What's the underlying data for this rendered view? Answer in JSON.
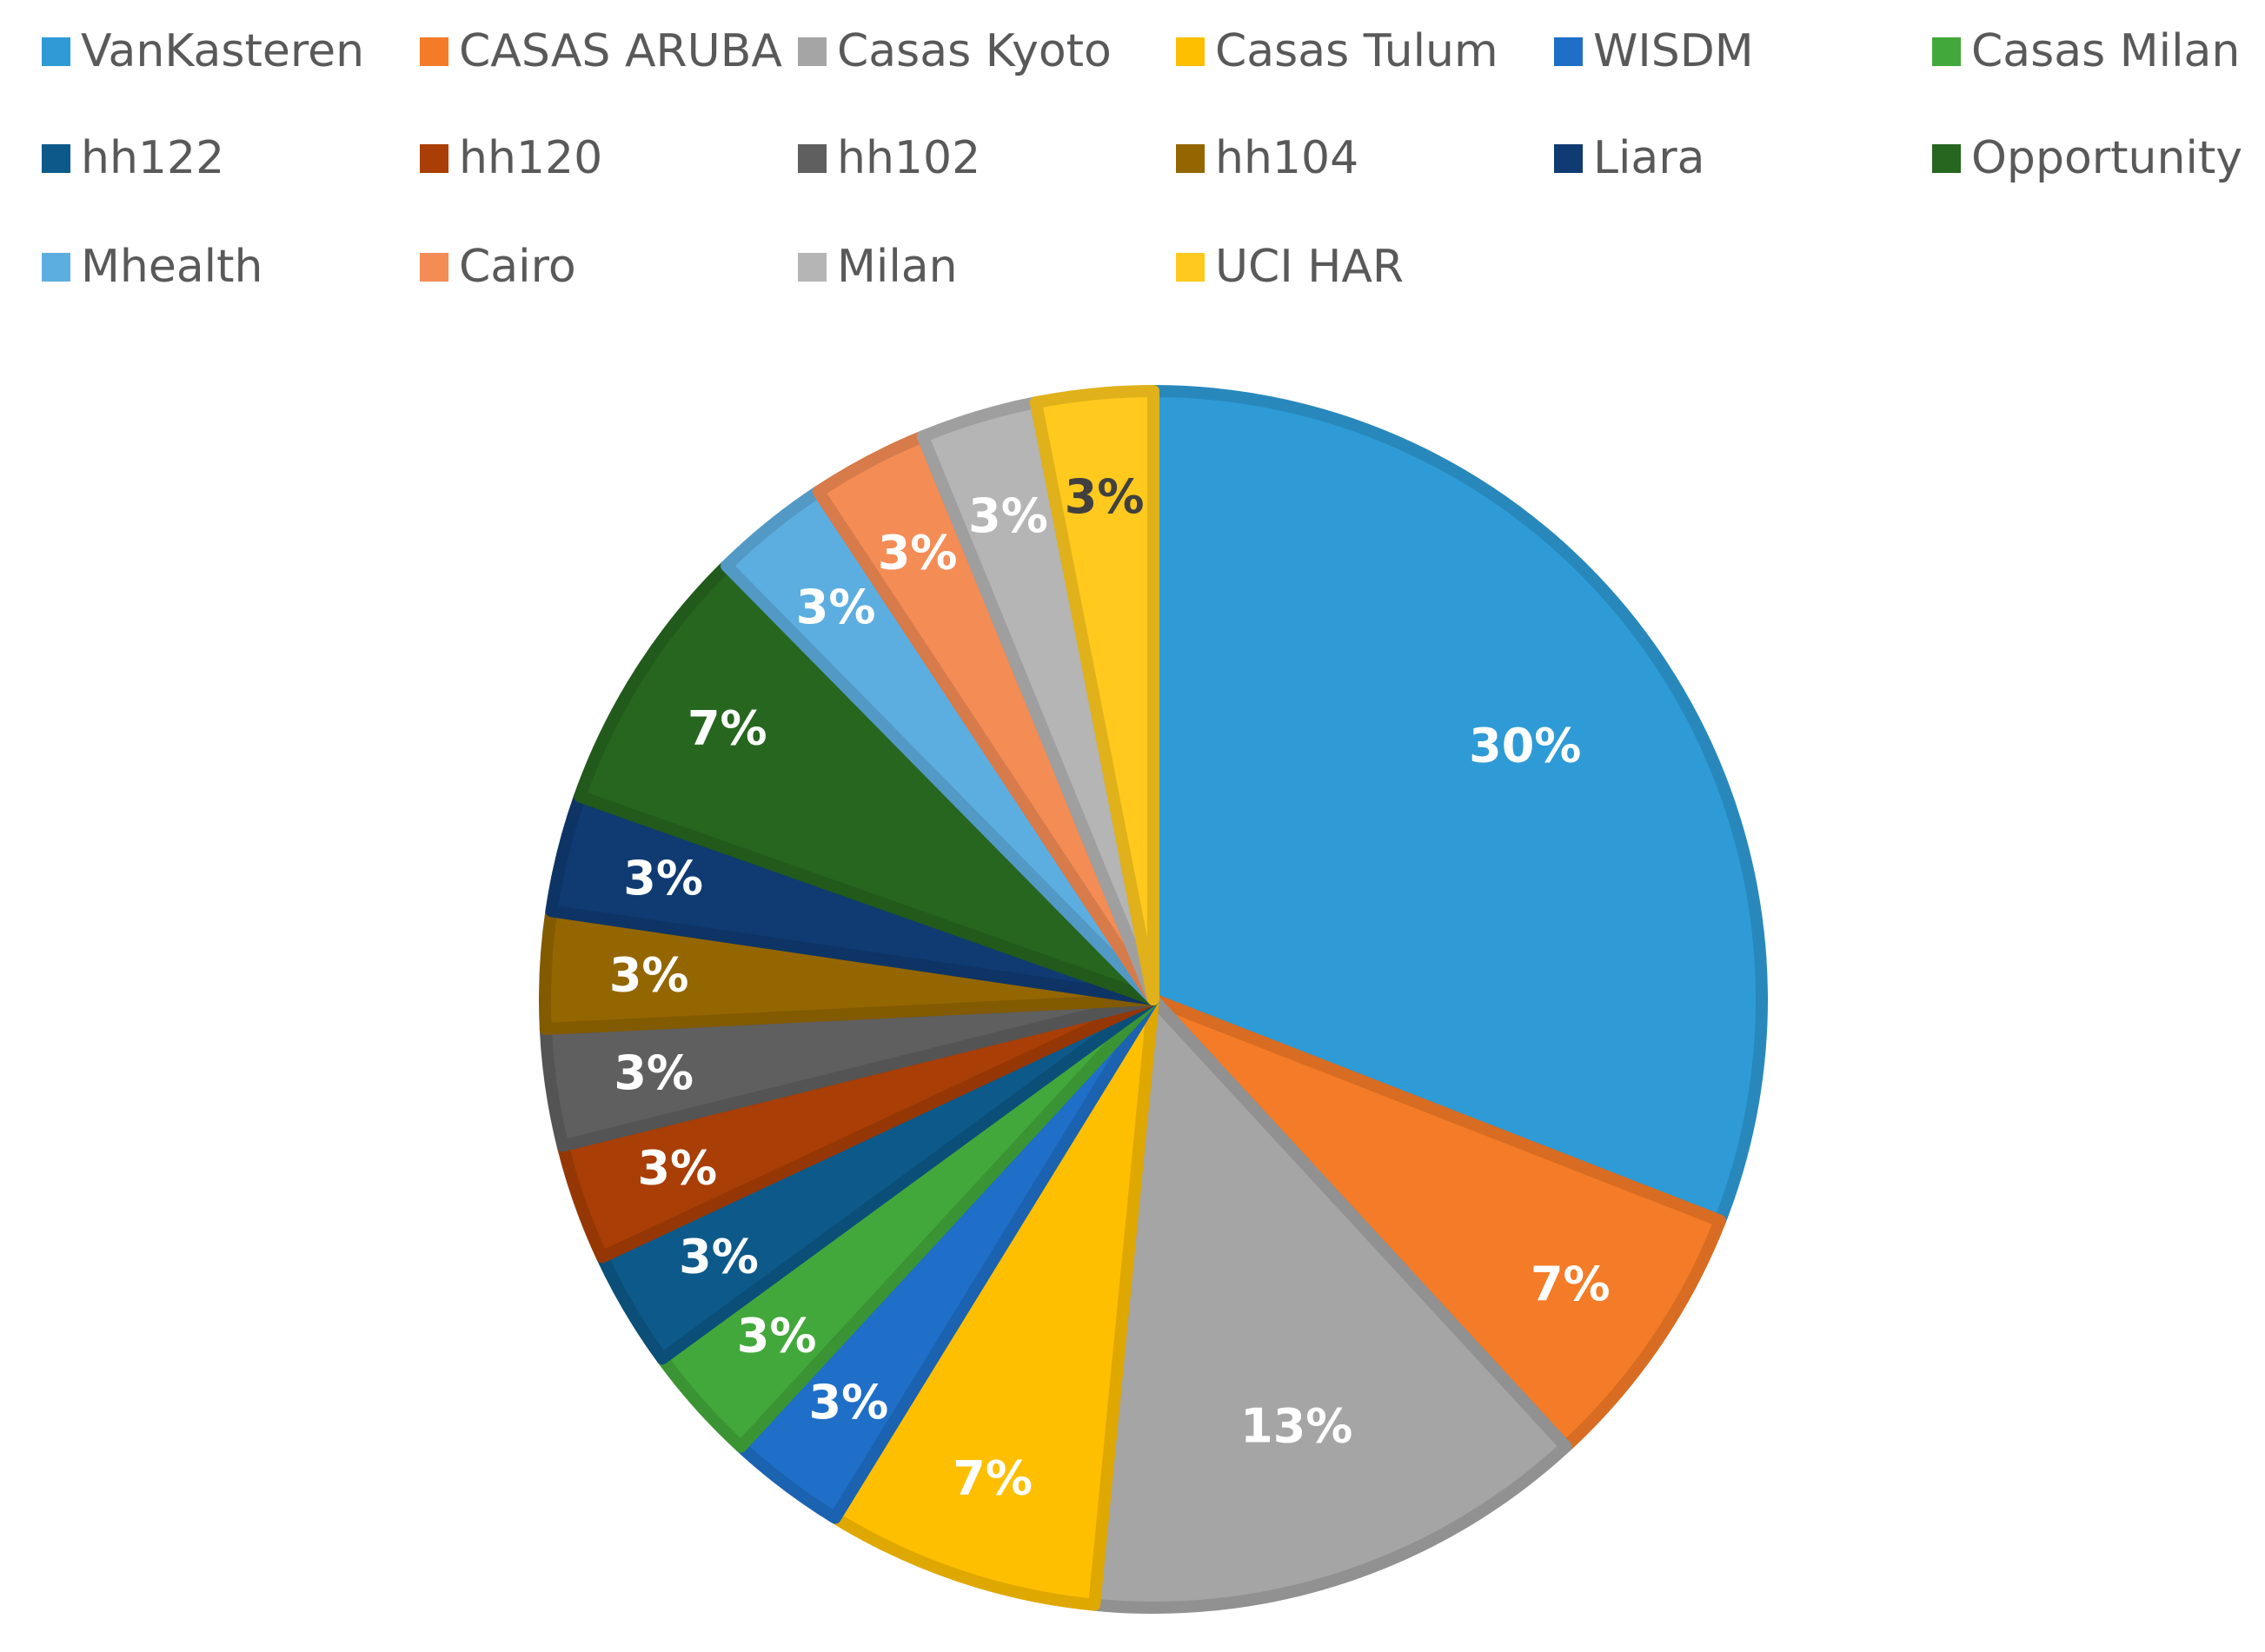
{
  "chart_data": {
    "type": "pie",
    "title": "",
    "legend_position": "top",
    "slices": [
      {
        "name": "VanKasteren",
        "value": 30,
        "label": "30%",
        "color": "#2E9BD6",
        "label_color": "#ffffff"
      },
      {
        "name": "CASAS ARUBA",
        "value": 7,
        "label": "7%",
        "color": "#F47B27",
        "label_color": "#ffffff"
      },
      {
        "name": "Casas Kyoto",
        "value": 13,
        "label": "13%",
        "color": "#A5A5A5",
        "label_color": "#ffffff"
      },
      {
        "name": "Casas Tulum",
        "value": 7,
        "label": "7%",
        "color": "#FDBF00",
        "label_color": "#ffffff"
      },
      {
        "name": "WISDM",
        "value": 3,
        "label": "3%",
        "color": "#1F6FC8",
        "label_color": "#ffffff"
      },
      {
        "name": "Casas Milan",
        "value": 3,
        "label": "3%",
        "color": "#43A83B",
        "label_color": "#ffffff"
      },
      {
        "name": "hh122",
        "value": 3,
        "label": "3%",
        "color": "#0D5A8A",
        "label_color": "#ffffff"
      },
      {
        "name": "hh120",
        "value": 3,
        "label": "3%",
        "color": "#A93E06",
        "label_color": "#ffffff"
      },
      {
        "name": "hh102",
        "value": 3,
        "label": "3%",
        "color": "#5F5F5F",
        "label_color": "#ffffff"
      },
      {
        "name": "hh104",
        "value": 3,
        "label": "3%",
        "color": "#946600",
        "label_color": "#ffffff"
      },
      {
        "name": "Liara",
        "value": 3,
        "label": "3%",
        "color": "#0F3B72",
        "label_color": "#ffffff"
      },
      {
        "name": "Opportunity",
        "value": 7,
        "label": "7%",
        "color": "#26661F",
        "label_color": "#ffffff"
      },
      {
        "name": "Mhealth",
        "value": 3,
        "label": "3%",
        "color": "#5DAEE0",
        "label_color": "#ffffff"
      },
      {
        "name": "Cairo",
        "value": 3,
        "label": "3%",
        "color": "#F48C55",
        "label_color": "#ffffff"
      },
      {
        "name": "Milan",
        "value": 3,
        "label": "3%",
        "color": "#B5B5B5",
        "label_color": "#ffffff"
      },
      {
        "name": "UCI HAR",
        "value": 3,
        "label": "3%",
        "color": "#FFC91E",
        "label_color": "#404040"
      }
    ]
  }
}
